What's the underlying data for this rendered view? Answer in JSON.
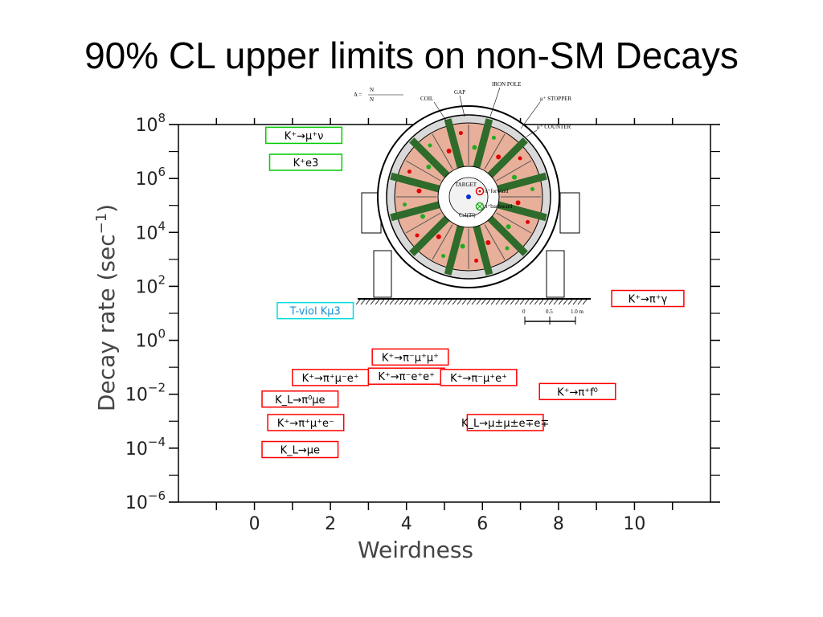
{
  "slide": {
    "title": "90% CL upper limits on non-SM Decays"
  },
  "chart_data": {
    "type": "scatter",
    "title": "90% CL upper limits on non-SM Decays",
    "xlabel": "Weirdness",
    "ylabel_main": "Decay rate (sec",
    "ylabel_sup": "−1",
    "ylabel_close": ")",
    "xlim": [
      -2,
      12
    ],
    "ylim_log10": [
      -6,
      8
    ],
    "log_y": true,
    "grid": false,
    "x_ticks": [
      {
        "value": 0,
        "label": "0"
      },
      {
        "value": 2,
        "label": "2"
      },
      {
        "value": 4,
        "label": "4"
      },
      {
        "value": 6,
        "label": "6"
      },
      {
        "value": 8,
        "label": "8"
      },
      {
        "value": 10,
        "label": "10"
      }
    ],
    "y_ticks": [
      {
        "exp": 8,
        "base": "10",
        "sup": "8"
      },
      {
        "exp": 6,
        "base": "10",
        "sup": "6"
      },
      {
        "exp": 4,
        "base": "10",
        "sup": "4"
      },
      {
        "exp": 2,
        "base": "10",
        "sup": "2"
      },
      {
        "exp": 0,
        "base": "10",
        "sup": "0"
      },
      {
        "exp": -2,
        "base": "10",
        "sup": "−2"
      },
      {
        "exp": -4,
        "base": "10",
        "sup": "−4"
      },
      {
        "exp": -6,
        "base": "10",
        "sup": "−6"
      }
    ],
    "points": [
      {
        "label": "K⁺→μ⁺ν",
        "x": 0.3,
        "x_end": 2.3,
        "log_y": 7.6,
        "color": "#00cc00"
      },
      {
        "label": "K⁺e3",
        "x": 0.4,
        "x_end": 2.3,
        "log_y": 6.6,
        "color": "#00cc00"
      },
      {
        "label": "T-viol Kμ3",
        "x": 0.6,
        "x_end": 2.6,
        "log_y": 1.1,
        "color": "#00dddd"
      },
      {
        "label": "K⁺→π⁺γ",
        "x": 9.4,
        "x_end": 11.3,
        "log_y": 1.55,
        "color": "#ff0000"
      },
      {
        "label": "K⁺→π⁻μ⁺μ⁺",
        "x": 3.1,
        "x_end": 5.1,
        "log_y": -0.62,
        "color": "#ff0000"
      },
      {
        "label": "K⁺→π⁺μ⁻e⁺",
        "x": 1.0,
        "x_end": 3.0,
        "log_y": -1.38,
        "color": "#ff0000"
      },
      {
        "label": "K⁺→π⁻e⁺e⁺",
        "x": 3.0,
        "x_end": 5.0,
        "log_y": -1.33,
        "color": "#ff0000"
      },
      {
        "label": "K⁺→π⁻μ⁺e⁺",
        "x": 4.9,
        "x_end": 6.9,
        "log_y": -1.38,
        "color": "#ff0000"
      },
      {
        "label": "K⁺→π⁺f⁰",
        "x": 7.5,
        "x_end": 9.5,
        "log_y": -1.9,
        "color": "#ff0000"
      },
      {
        "label": "K_L→π⁰μe",
        "x": 0.2,
        "x_end": 2.2,
        "log_y": -2.18,
        "color": "#ff0000"
      },
      {
        "label": "K⁺→π⁺μ⁺e⁻",
        "x": 0.35,
        "x_end": 2.35,
        "log_y": -3.05,
        "color": "#ff0000"
      },
      {
        "label": "K_L→μ±μ±e∓e∓",
        "x": 5.6,
        "x_end": 7.6,
        "log_y": -3.05,
        "color": "#ff0000"
      },
      {
        "label": "K_L→μe",
        "x": 0.2,
        "x_end": 2.2,
        "log_y": -4.05,
        "color": "#ff0000"
      }
    ]
  },
  "detector_inset": {
    "formula_a": "A =",
    "formula_num": "N",
    "formula_den": "N",
    "labels": {
      "coil": "COIL",
      "gap": "GAP",
      "iron_pole": "IRON POLE",
      "stopper": "μ⁺ STOPPER",
      "counter": "μ⁺ COUNTER",
      "target": "TARGET",
      "csi": "CsI(Tl)",
      "pi_forward": "π⁺forward",
      "pi_backward": "π⁺backward",
      "scale_0": "0",
      "scale_mid": "0.5",
      "scale_end": "1.0 m"
    },
    "colors": {
      "sector_fill": "#e8b09a",
      "coil_green": "#2f6b2a",
      "marker_red": "#e00000",
      "marker_green": "#22aa22"
    }
  }
}
